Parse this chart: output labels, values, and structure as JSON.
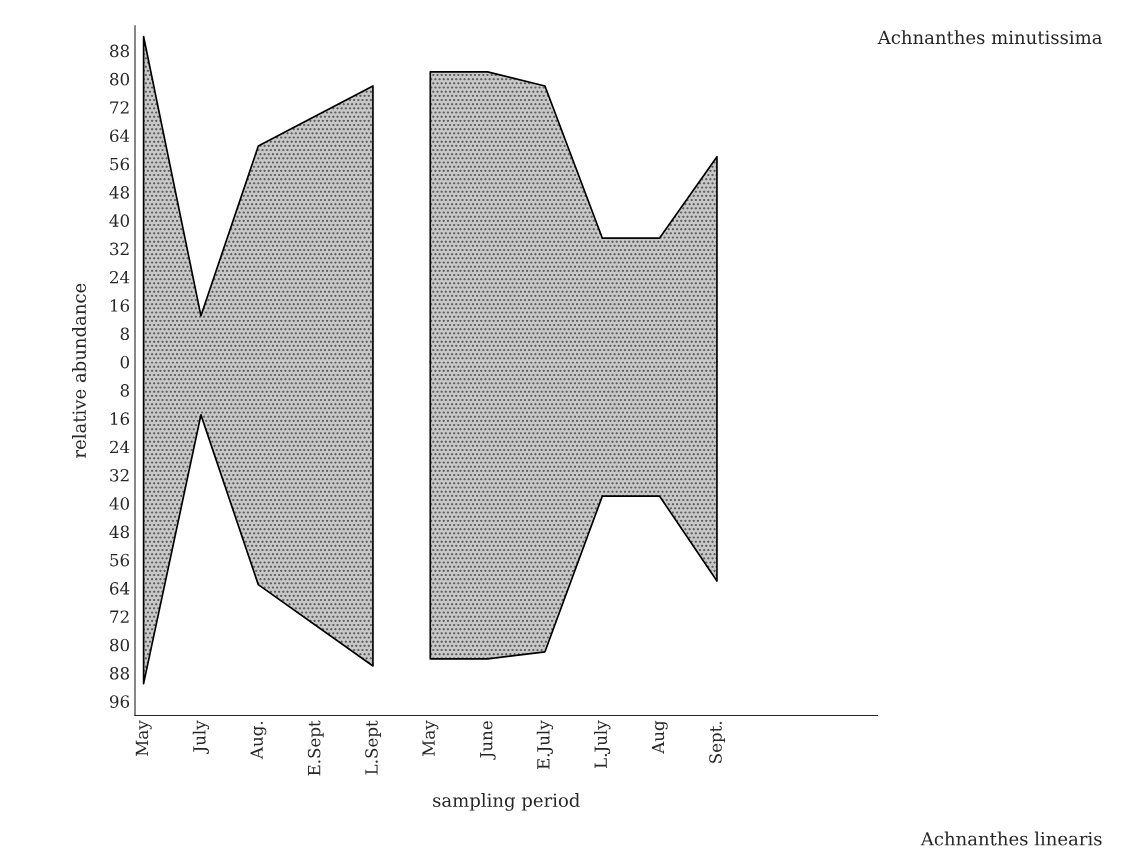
{
  "chart_data": {
    "type": "area",
    "xlabel": "sampling period",
    "ylabel": "relative abundance",
    "categories": [
      "May",
      "July",
      "Aug.",
      "E.Sept",
      "L.Sept",
      "May",
      "June",
      "E.July",
      "L.July",
      "Aug",
      "Sept."
    ],
    "series": [
      {
        "color": "#c8c8c8",
        "values": [
          92,
          13,
          61,
          null,
          78,
          null,
          null,
          null,
          null,
          null,
          null
        ]
      },
      {
        "color": "#c8c8c8",
        "values": [
          null,
          null,
          null,
          null,
          null,
          82,
          82,
          78,
          35,
          35,
          58
        ]
      },
      {
        "color": "#c8c8c8",
        "values": [
          -91,
          -15,
          -63,
          null,
          -86,
          null,
          null,
          null,
          null,
          null,
          null
        ]
      },
      {
        "color": "#c8c8c8",
        "values": [
          null,
          null,
          null,
          null,
          null,
          -84,
          -84,
          -82,
          -38,
          -38,
          -62
        ]
      }
    ],
    "ylim": [
      -100,
      95
    ],
    "yticks": [
      88,
      80,
      72,
      64,
      56,
      48,
      40,
      32,
      24,
      16,
      8,
      0,
      {
        "value": -8,
        "label": "8"
      },
      {
        "value": -16,
        "label": "16"
      },
      {
        "value": -24,
        "label": "24"
      },
      {
        "value": -32,
        "label": "32"
      },
      {
        "value": -40,
        "label": "40"
      },
      {
        "value": -48,
        "label": "48"
      },
      {
        "value": -56,
        "label": "56"
      },
      {
        "value": -64,
        "label": "64"
      },
      {
        "value": -72,
        "label": "72"
      },
      {
        "value": -80,
        "label": "80"
      },
      {
        "value": -88,
        "label": "88"
      },
      {
        "value": -96,
        "label": "96"
      }
    ],
    "annotations": [
      "Achnanthes minutissima",
      "Achnanthes linearis"
    ]
  }
}
